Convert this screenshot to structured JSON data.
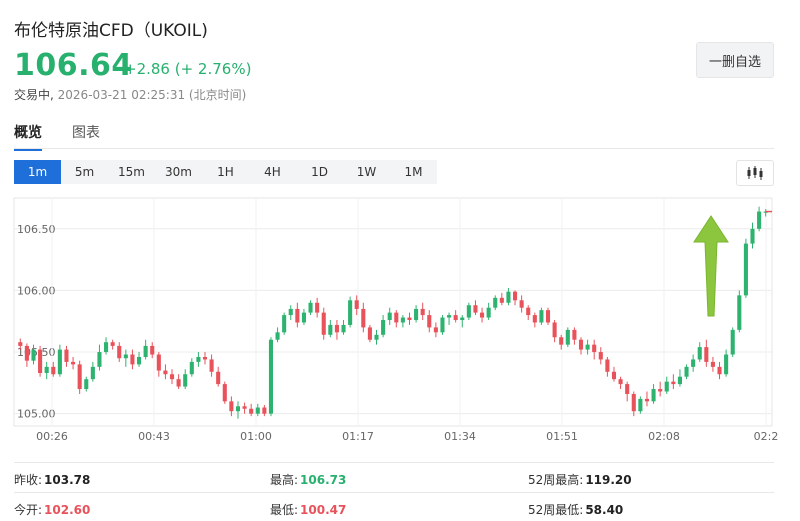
{
  "header": {
    "title": "布伦特原油CFD（UKOIL)",
    "price": "106.64",
    "change": "+2.86 (+ 2.76%)",
    "status_label": "交易中,",
    "timestamp": "2026-03-21 02:25:31 (北京时间)",
    "watchlist_button": "一删自选"
  },
  "tabs": [
    {
      "label": "概览",
      "active": true
    },
    {
      "label": "图表",
      "active": false
    }
  ],
  "periods": [
    {
      "label": "1m",
      "active": true
    },
    {
      "label": "5m",
      "active": false
    },
    {
      "label": "15m",
      "active": false
    },
    {
      "label": "30m",
      "active": false
    },
    {
      "label": "1H",
      "active": false
    },
    {
      "label": "4H",
      "active": false
    },
    {
      "label": "1D",
      "active": false
    },
    {
      "label": "1W",
      "active": false
    },
    {
      "label": "1M",
      "active": false
    }
  ],
  "chart_type_icon": "candlestick-chart-icon",
  "colors": {
    "up": "#2db36f",
    "down": "#e8525b",
    "accent": "#1e6fd9",
    "arrow": "#8cc63f"
  },
  "chart_data": {
    "type": "candlestick",
    "x_labels": [
      "00:26",
      "00:43",
      "01:00",
      "01:17",
      "01:34",
      "01:51",
      "02:08",
      "02:2"
    ],
    "y_ticks": [
      "105.00",
      "105.50",
      "106.00",
      "106.50"
    ],
    "y_tick_values": [
      105.0,
      105.5,
      106.0,
      106.5
    ],
    "ylim": [
      104.9,
      106.75
    ],
    "grid": true,
    "annotation": "green-up-arrow",
    "candles": [
      [
        105.58,
        105.61,
        105.52,
        105.55
      ],
      [
        105.55,
        105.57,
        105.38,
        105.43
      ],
      [
        105.43,
        105.56,
        105.4,
        105.52
      ],
      [
        105.52,
        105.55,
        105.3,
        105.33
      ],
      [
        105.33,
        105.42,
        105.28,
        105.38
      ],
      [
        105.38,
        105.42,
        105.3,
        105.32
      ],
      [
        105.32,
        105.56,
        105.3,
        105.52
      ],
      [
        105.52,
        105.55,
        105.38,
        105.42
      ],
      [
        105.42,
        105.46,
        105.36,
        105.4
      ],
      [
        105.4,
        105.43,
        105.16,
        105.2
      ],
      [
        105.2,
        105.3,
        105.18,
        105.28
      ],
      [
        105.28,
        105.42,
        105.26,
        105.38
      ],
      [
        105.38,
        105.56,
        105.35,
        105.5
      ],
      [
        105.5,
        105.62,
        105.48,
        105.58
      ],
      [
        105.58,
        105.6,
        105.52,
        105.55
      ],
      [
        105.55,
        105.58,
        105.42,
        105.45
      ],
      [
        105.45,
        105.52,
        105.38,
        105.48
      ],
      [
        105.48,
        105.52,
        105.36,
        105.4
      ],
      [
        105.4,
        105.5,
        105.38,
        105.46
      ],
      [
        105.46,
        105.6,
        105.44,
        105.55
      ],
      [
        105.55,
        105.58,
        105.45,
        105.48
      ],
      [
        105.48,
        105.5,
        105.3,
        105.35
      ],
      [
        105.35,
        105.4,
        105.28,
        105.32
      ],
      [
        105.32,
        105.36,
        105.24,
        105.28
      ],
      [
        105.28,
        105.32,
        105.2,
        105.22
      ],
      [
        105.22,
        105.36,
        105.2,
        105.32
      ],
      [
        105.32,
        105.45,
        105.3,
        105.42
      ],
      [
        105.42,
        105.5,
        105.38,
        105.46
      ],
      [
        105.46,
        105.5,
        105.4,
        105.44
      ],
      [
        105.44,
        105.48,
        105.3,
        105.34
      ],
      [
        105.34,
        105.38,
        105.22,
        105.24
      ],
      [
        105.24,
        105.26,
        105.08,
        105.1
      ],
      [
        105.1,
        105.14,
        104.98,
        105.02
      ],
      [
        105.02,
        105.1,
        104.96,
        105.06
      ],
      [
        105.06,
        105.09,
        105.0,
        105.04
      ],
      [
        105.04,
        105.08,
        104.98,
        105.0
      ],
      [
        105.0,
        105.08,
        104.98,
        105.05
      ],
      [
        105.05,
        105.07,
        104.98,
        105.0
      ],
      [
        105.0,
        105.62,
        104.98,
        105.6
      ],
      [
        105.6,
        105.7,
        105.58,
        105.66
      ],
      [
        105.66,
        105.82,
        105.64,
        105.8
      ],
      [
        105.8,
        105.88,
        105.76,
        105.85
      ],
      [
        105.85,
        105.9,
        105.7,
        105.74
      ],
      [
        105.74,
        105.85,
        105.72,
        105.82
      ],
      [
        105.82,
        105.92,
        105.8,
        105.9
      ],
      [
        105.9,
        105.94,
        105.78,
        105.82
      ],
      [
        105.82,
        105.86,
        105.6,
        105.64
      ],
      [
        105.64,
        105.76,
        105.62,
        105.72
      ],
      [
        105.72,
        105.76,
        105.6,
        105.66
      ],
      [
        105.66,
        105.76,
        105.64,
        105.72
      ],
      [
        105.72,
        105.95,
        105.7,
        105.92
      ],
      [
        105.92,
        105.96,
        105.8,
        105.85
      ],
      [
        105.85,
        105.9,
        105.66,
        105.7
      ],
      [
        105.7,
        105.72,
        105.58,
        105.6
      ],
      [
        105.6,
        105.68,
        105.56,
        105.64
      ],
      [
        105.64,
        105.8,
        105.62,
        105.76
      ],
      [
        105.76,
        105.86,
        105.72,
        105.82
      ],
      [
        105.82,
        105.84,
        105.7,
        105.74
      ],
      [
        105.74,
        105.8,
        105.7,
        105.78
      ],
      [
        105.78,
        105.82,
        105.72,
        105.76
      ],
      [
        105.76,
        105.88,
        105.74,
        105.85
      ],
      [
        105.85,
        105.9,
        105.76,
        105.8
      ],
      [
        105.8,
        105.84,
        105.66,
        105.7
      ],
      [
        105.7,
        105.74,
        105.62,
        105.66
      ],
      [
        105.66,
        105.8,
        105.64,
        105.78
      ],
      [
        105.78,
        105.82,
        105.72,
        105.8
      ],
      [
        105.8,
        105.84,
        105.74,
        105.76
      ],
      [
        105.76,
        105.8,
        105.7,
        105.78
      ],
      [
        105.78,
        105.9,
        105.76,
        105.88
      ],
      [
        105.88,
        105.92,
        105.8,
        105.82
      ],
      [
        105.82,
        105.86,
        105.74,
        105.78
      ],
      [
        105.78,
        105.9,
        105.76,
        105.86
      ],
      [
        105.86,
        105.96,
        105.84,
        105.94
      ],
      [
        105.94,
        105.98,
        105.88,
        105.9
      ],
      [
        105.9,
        106.02,
        105.88,
        105.99
      ],
      [
        105.99,
        106.0,
        105.88,
        105.92
      ],
      [
        105.92,
        105.96,
        105.82,
        105.86
      ],
      [
        105.86,
        105.88,
        105.76,
        105.8
      ],
      [
        105.8,
        105.82,
        105.7,
        105.74
      ],
      [
        105.74,
        105.86,
        105.72,
        105.84
      ],
      [
        105.84,
        105.86,
        105.72,
        105.74
      ],
      [
        105.74,
        105.76,
        105.58,
        105.62
      ],
      [
        105.62,
        105.64,
        105.52,
        105.56
      ],
      [
        105.56,
        105.7,
        105.54,
        105.68
      ],
      [
        105.68,
        105.7,
        105.56,
        105.6
      ],
      [
        105.6,
        105.62,
        105.48,
        105.52
      ],
      [
        105.52,
        105.6,
        105.48,
        105.56
      ],
      [
        105.56,
        105.6,
        105.44,
        105.5
      ],
      [
        105.5,
        105.54,
        105.4,
        105.44
      ],
      [
        105.44,
        105.46,
        105.3,
        105.34
      ],
      [
        105.34,
        105.38,
        105.26,
        105.28
      ],
      [
        105.28,
        105.3,
        105.2,
        105.24
      ],
      [
        105.24,
        105.26,
        105.1,
        105.16
      ],
      [
        105.16,
        105.18,
        104.98,
        105.02
      ],
      [
        105.02,
        105.14,
        105.0,
        105.12
      ],
      [
        105.12,
        105.18,
        105.06,
        105.1
      ],
      [
        105.1,
        105.24,
        105.08,
        105.2
      ],
      [
        105.2,
        105.26,
        105.14,
        105.18
      ],
      [
        105.18,
        105.3,
        105.16,
        105.26
      ],
      [
        105.26,
        105.32,
        105.2,
        105.24
      ],
      [
        105.24,
        105.36,
        105.22,
        105.3
      ],
      [
        105.3,
        105.4,
        105.28,
        105.38
      ],
      [
        105.38,
        105.48,
        105.34,
        105.44
      ],
      [
        105.44,
        105.58,
        105.42,
        105.54
      ],
      [
        105.54,
        105.6,
        105.38,
        105.42
      ],
      [
        105.42,
        105.46,
        105.34,
        105.38
      ],
      [
        105.38,
        105.42,
        105.28,
        105.32
      ],
      [
        105.32,
        105.52,
        105.3,
        105.48
      ],
      [
        105.48,
        105.7,
        105.46,
        105.68
      ],
      [
        105.68,
        106.0,
        105.66,
        105.96
      ],
      [
        105.96,
        106.42,
        105.94,
        106.38
      ],
      [
        106.38,
        106.55,
        106.34,
        106.5
      ],
      [
        106.5,
        106.68,
        106.48,
        106.64
      ],
      [
        106.64,
        106.66,
        106.6,
        106.64
      ]
    ]
  },
  "stats": [
    [
      {
        "label": "昨收:",
        "value": "103.78",
        "tone": "neutral"
      },
      {
        "label": "最高:",
        "value": "106.73",
        "tone": "up"
      },
      {
        "label": "52周最高:",
        "value": "119.20",
        "tone": "neutral"
      }
    ],
    [
      {
        "label": "今开:",
        "value": "102.60",
        "tone": "down"
      },
      {
        "label": "最低:",
        "value": "100.47",
        "tone": "down"
      },
      {
        "label": "52周最低:",
        "value": "58.40",
        "tone": "neutral"
      }
    ]
  ]
}
